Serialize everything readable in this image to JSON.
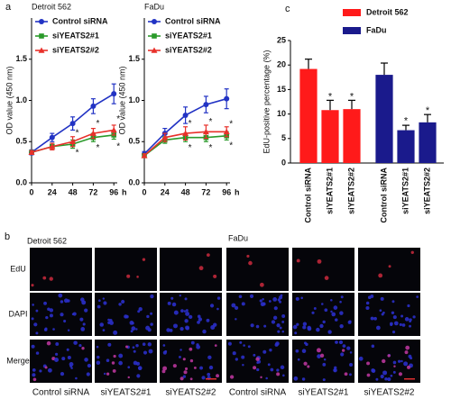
{
  "panel_labels": [
    "a",
    "b",
    "c"
  ],
  "chart_data": [
    {
      "type": "line",
      "title": "Detroit 562",
      "ylabel": "OD value (450 nm)",
      "xlabel": "h",
      "x": [
        0,
        24,
        48,
        72,
        96
      ],
      "xlim": [
        0,
        100
      ],
      "xticks": [
        0,
        24,
        48,
        72,
        96
      ],
      "ylim": [
        0,
        2
      ],
      "yticks": [
        {
          "value": 0,
          "label": "0.0"
        },
        {
          "value": 0.5,
          "label": "0.5"
        },
        {
          "value": 1,
          "label": "1.0"
        },
        {
          "value": 1.5,
          "label": "1.5"
        }
      ],
      "series": [
        {
          "name": "Control siRNA",
          "color": "#2233c4",
          "marker": "circle",
          "values": [
            0.37,
            0.55,
            0.72,
            0.93,
            1.08
          ],
          "errors": [
            0.03,
            0.05,
            0.08,
            0.09,
            0.12
          ]
        },
        {
          "name": "siYEATS2#1",
          "color": "#2a9a2a",
          "marker": "square",
          "values": [
            0.37,
            0.44,
            0.47,
            0.55,
            0.58
          ],
          "errors": [
            0.02,
            0.04,
            0.05,
            0.05,
            0.05
          ]
        },
        {
          "name": "siYEATS2#2",
          "color": "#e8302a",
          "marker": "triangle",
          "values": [
            0.37,
            0.44,
            0.5,
            0.6,
            0.64
          ],
          "errors": [
            0.02,
            0.04,
            0.06,
            0.06,
            0.06
          ]
        }
      ],
      "annotations": [
        {
          "text": "*",
          "x": 48,
          "y": 0.6,
          "color": "#e8302a"
        },
        {
          "text": "*",
          "x": 72,
          "y": 0.72,
          "color": "#e8302a"
        },
        {
          "text": "*",
          "x": 96,
          "y": 0.77,
          "color": "#e8302a"
        },
        {
          "text": "*",
          "x": 48,
          "y": 0.36,
          "color": "#2a9a2a"
        },
        {
          "text": "*",
          "x": 72,
          "y": 0.42,
          "color": "#2a9a2a"
        },
        {
          "text": "*",
          "x": 96,
          "y": 0.44,
          "color": "#2a9a2a"
        }
      ]
    },
    {
      "type": "line",
      "title": "FaDu",
      "ylabel": "OD value (450 nm)",
      "xlabel": "h",
      "x": [
        0,
        24,
        48,
        72,
        96
      ],
      "xlim": [
        0,
        100
      ],
      "xticks": [
        0,
        24,
        48,
        72,
        96
      ],
      "ylim": [
        0,
        2
      ],
      "yticks": [
        {
          "value": 0,
          "label": "0.0"
        },
        {
          "value": 0.5,
          "label": "0.5"
        },
        {
          "value": 1,
          "label": "1.0"
        },
        {
          "value": 1.5,
          "label": "1.5"
        }
      ],
      "series": [
        {
          "name": "Control siRNA",
          "color": "#2233c4",
          "marker": "circle",
          "values": [
            0.35,
            0.6,
            0.82,
            0.95,
            1.02
          ],
          "errors": [
            0.03,
            0.06,
            0.1,
            0.1,
            0.12
          ]
        },
        {
          "name": "siYEATS2#1",
          "color": "#2a9a2a",
          "marker": "square",
          "values": [
            0.33,
            0.52,
            0.55,
            0.55,
            0.57
          ],
          "errors": [
            0.02,
            0.04,
            0.05,
            0.05,
            0.05
          ]
        },
        {
          "name": "siYEATS2#2",
          "color": "#e8302a",
          "marker": "triangle",
          "values": [
            0.33,
            0.55,
            0.6,
            0.62,
            0.62
          ],
          "errors": [
            0.02,
            0.05,
            0.08,
            0.08,
            0.06
          ]
        }
      ],
      "annotations": [
        {
          "text": "*",
          "x": 48,
          "y": 0.72,
          "color": "#e8302a"
        },
        {
          "text": "*",
          "x": 72,
          "y": 0.74,
          "color": "#e8302a"
        },
        {
          "text": "*",
          "x": 96,
          "y": 0.71,
          "color": "#e8302a"
        },
        {
          "text": "*",
          "x": 48,
          "y": 0.42,
          "color": "#2a9a2a"
        },
        {
          "text": "*",
          "x": 72,
          "y": 0.42,
          "color": "#2a9a2a"
        },
        {
          "text": "*",
          "x": 96,
          "y": 0.45,
          "color": "#2a9a2a"
        }
      ]
    },
    {
      "type": "bar",
      "ylabel": "EdU-positive percentage (%)",
      "categories": [
        "Control siRNA",
        "siYEATS2#1",
        "siYEATS2#2",
        "Control siRNA",
        "siYEATS2#1",
        "siYEATS2#2"
      ],
      "ylim": [
        0,
        25
      ],
      "yticks": [
        0,
        5,
        10,
        15,
        20,
        25
      ],
      "series": [
        {
          "name": "Detroit 562",
          "color": "#ff1a1a",
          "values": [
            19.2,
            10.8,
            11,
            null,
            null,
            null
          ],
          "errors": [
            2,
            2,
            1.8,
            null,
            null,
            null
          ]
        },
        {
          "name": "FaDu",
          "color": "#1a1a8c",
          "values": [
            null,
            null,
            null,
            18,
            6.7,
            8.3
          ],
          "errors": [
            null,
            null,
            null,
            2.4,
            1,
            1.6
          ]
        }
      ],
      "annotations": [
        {
          "text": "*",
          "category": 1,
          "y": 13.5
        },
        {
          "text": "*",
          "category": 2,
          "y": 13.5
        },
        {
          "text": "*",
          "category": 4,
          "y": 8.5
        },
        {
          "text": "*",
          "category": 5,
          "y": 10.6
        }
      ]
    }
  ],
  "images": {
    "groups": [
      "Detroit 562",
      "FaDu"
    ],
    "rows": [
      "EdU",
      "DAPI",
      "Merge"
    ],
    "columns": [
      "Control siRNA",
      "siYEATS2#1",
      "siYEATS2#2",
      "Control siRNA",
      "siYEATS2#1",
      "siYEATS2#2"
    ]
  }
}
